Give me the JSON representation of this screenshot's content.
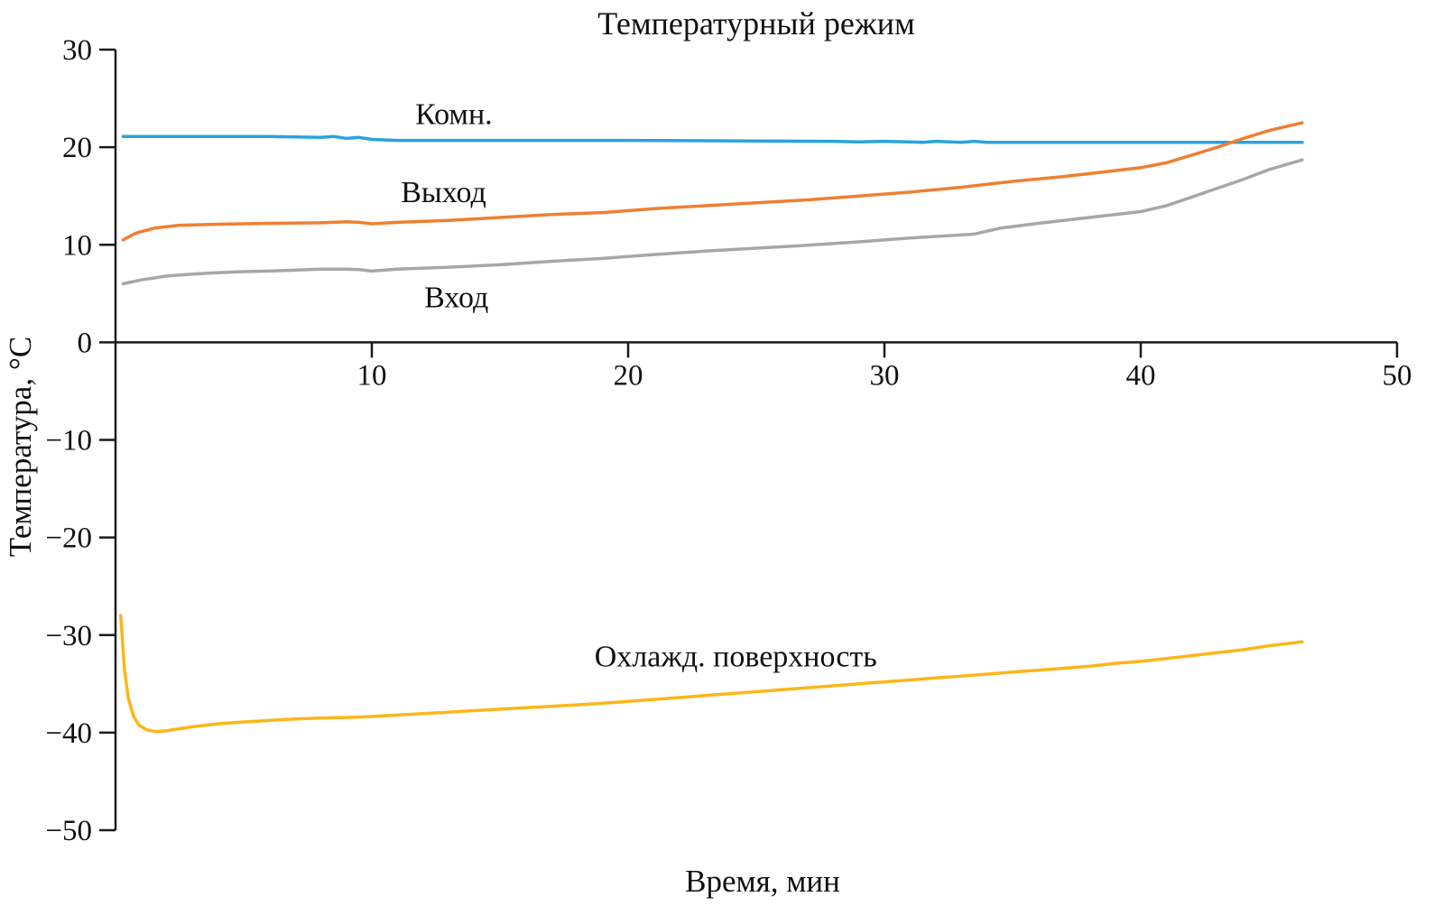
{
  "chart_data": {
    "type": "line",
    "title": "Температурный режим",
    "xlabel": "Время, мин",
    "ylabel": "Температура, °C",
    "xlim": [
      0,
      50
    ],
    "ylim": [
      -50,
      30
    ],
    "xticks": [
      10,
      20,
      30,
      40,
      50
    ],
    "xtick_labels": [
      "10",
      "20",
      "30",
      "40",
      "50"
    ],
    "yticks": [
      30,
      20,
      10,
      0,
      -10,
      -20,
      -30,
      -40,
      -50
    ],
    "ytick_labels": [
      "30",
      "20",
      "10",
      "0",
      "−10",
      "−20",
      "−30",
      "−40",
      "−50"
    ],
    "grid": false,
    "legend_position": "inline-annotations",
    "axis_color": "#1a1a1a",
    "series": [
      {
        "name": "Комн.",
        "color": "#29a3dc",
        "points": [
          [
            0.3,
            21.1
          ],
          [
            2,
            21.1
          ],
          [
            4,
            21.1
          ],
          [
            6,
            21.1
          ],
          [
            8,
            21.0
          ],
          [
            8.5,
            21.1
          ],
          [
            9,
            20.9
          ],
          [
            9.5,
            21.0
          ],
          [
            10,
            20.8
          ],
          [
            11,
            20.7
          ],
          [
            13,
            20.7
          ],
          [
            16,
            20.7
          ],
          [
            20,
            20.7
          ],
          [
            24,
            20.65
          ],
          [
            28,
            20.6
          ],
          [
            29,
            20.55
          ],
          [
            30,
            20.6
          ],
          [
            31.5,
            20.5
          ],
          [
            32,
            20.6
          ],
          [
            33,
            20.5
          ],
          [
            33.5,
            20.6
          ],
          [
            34,
            20.5
          ],
          [
            36,
            20.5
          ],
          [
            40,
            20.5
          ],
          [
            43,
            20.5
          ],
          [
            46.3,
            20.5
          ]
        ]
      },
      {
        "name": "Выход",
        "color": "#ef7f32",
        "points": [
          [
            0.3,
            10.5
          ],
          [
            0.8,
            11.2
          ],
          [
            1.5,
            11.7
          ],
          [
            2.5,
            12.0
          ],
          [
            4,
            12.1
          ],
          [
            6,
            12.2
          ],
          [
            8,
            12.25
          ],
          [
            9,
            12.35
          ],
          [
            9.5,
            12.3
          ],
          [
            10,
            12.15
          ],
          [
            11,
            12.3
          ],
          [
            13,
            12.5
          ],
          [
            15,
            12.8
          ],
          [
            17,
            13.1
          ],
          [
            19,
            13.3
          ],
          [
            21,
            13.7
          ],
          [
            23,
            14.0
          ],
          [
            25,
            14.3
          ],
          [
            27,
            14.6
          ],
          [
            29,
            15.0
          ],
          [
            31,
            15.4
          ],
          [
            33,
            15.9
          ],
          [
            35,
            16.5
          ],
          [
            37,
            17.0
          ],
          [
            39,
            17.6
          ],
          [
            40,
            17.9
          ],
          [
            41,
            18.4
          ],
          [
            42,
            19.2
          ],
          [
            43,
            20.0
          ],
          [
            44,
            20.9
          ],
          [
            45,
            21.7
          ],
          [
            46.3,
            22.5
          ]
        ]
      },
      {
        "name": "Вход",
        "color": "#a7a7a7",
        "points": [
          [
            0.3,
            6.0
          ],
          [
            1,
            6.4
          ],
          [
            2,
            6.8
          ],
          [
            3,
            7.0
          ],
          [
            4,
            7.15
          ],
          [
            5,
            7.25
          ],
          [
            6,
            7.3
          ],
          [
            7,
            7.4
          ],
          [
            8,
            7.5
          ],
          [
            9,
            7.5
          ],
          [
            9.5,
            7.45
          ],
          [
            10,
            7.3
          ],
          [
            11,
            7.5
          ],
          [
            13,
            7.7
          ],
          [
            15,
            7.95
          ],
          [
            17,
            8.3
          ],
          [
            19,
            8.6
          ],
          [
            21,
            9.0
          ],
          [
            23,
            9.35
          ],
          [
            25,
            9.65
          ],
          [
            27,
            9.95
          ],
          [
            29,
            10.3
          ],
          [
            31,
            10.7
          ],
          [
            33,
            11.0
          ],
          [
            33.5,
            11.1
          ],
          [
            34.5,
            11.7
          ],
          [
            36,
            12.2
          ],
          [
            38,
            12.8
          ],
          [
            40,
            13.4
          ],
          [
            41,
            14.0
          ],
          [
            42,
            14.9
          ],
          [
            43,
            15.8
          ],
          [
            44,
            16.7
          ],
          [
            45,
            17.7
          ],
          [
            46.3,
            18.7
          ]
        ]
      },
      {
        "name": "Охлажд. поверхность",
        "color": "#fcb61a",
        "points": [
          [
            0.2,
            -28.0
          ],
          [
            0.35,
            -33.5
          ],
          [
            0.5,
            -36.5
          ],
          [
            0.7,
            -38.3
          ],
          [
            0.9,
            -39.2
          ],
          [
            1.2,
            -39.7
          ],
          [
            1.6,
            -39.9
          ],
          [
            2,
            -39.8
          ],
          [
            2.5,
            -39.6
          ],
          [
            3,
            -39.4
          ],
          [
            4,
            -39.1
          ],
          [
            5,
            -38.9
          ],
          [
            6,
            -38.75
          ],
          [
            7,
            -38.6
          ],
          [
            8,
            -38.5
          ],
          [
            9,
            -38.45
          ],
          [
            10,
            -38.35
          ],
          [
            11,
            -38.2
          ],
          [
            12,
            -38.05
          ],
          [
            13,
            -37.9
          ],
          [
            14,
            -37.75
          ],
          [
            15,
            -37.6
          ],
          [
            16,
            -37.45
          ],
          [
            17,
            -37.3
          ],
          [
            18,
            -37.15
          ],
          [
            19,
            -37.0
          ],
          [
            20,
            -36.8
          ],
          [
            21,
            -36.6
          ],
          [
            22,
            -36.4
          ],
          [
            23,
            -36.2
          ],
          [
            24,
            -36.0
          ],
          [
            25,
            -35.8
          ],
          [
            26,
            -35.6
          ],
          [
            27,
            -35.4
          ],
          [
            28,
            -35.2
          ],
          [
            29,
            -35.0
          ],
          [
            30,
            -34.8
          ],
          [
            31,
            -34.6
          ],
          [
            32,
            -34.4
          ],
          [
            33,
            -34.2
          ],
          [
            34,
            -34.0
          ],
          [
            35,
            -33.8
          ],
          [
            36,
            -33.6
          ],
          [
            37,
            -33.4
          ],
          [
            38,
            -33.2
          ],
          [
            39,
            -32.9
          ],
          [
            40,
            -32.7
          ],
          [
            41,
            -32.4
          ],
          [
            42,
            -32.1
          ],
          [
            43,
            -31.8
          ],
          [
            44,
            -31.5
          ],
          [
            45,
            -31.1
          ],
          [
            46.3,
            -30.7
          ]
        ]
      }
    ],
    "annotations": [
      {
        "text": "Комн.",
        "x": 13.2,
        "y": 23.5
      },
      {
        "text": "Выход",
        "x": 12.8,
        "y": 15.5
      },
      {
        "text": "Вход",
        "x": 13.3,
        "y": 4.7
      },
      {
        "text": "Охлажд. поверхность",
        "x": 24.2,
        "y": -32.1
      }
    ]
  }
}
